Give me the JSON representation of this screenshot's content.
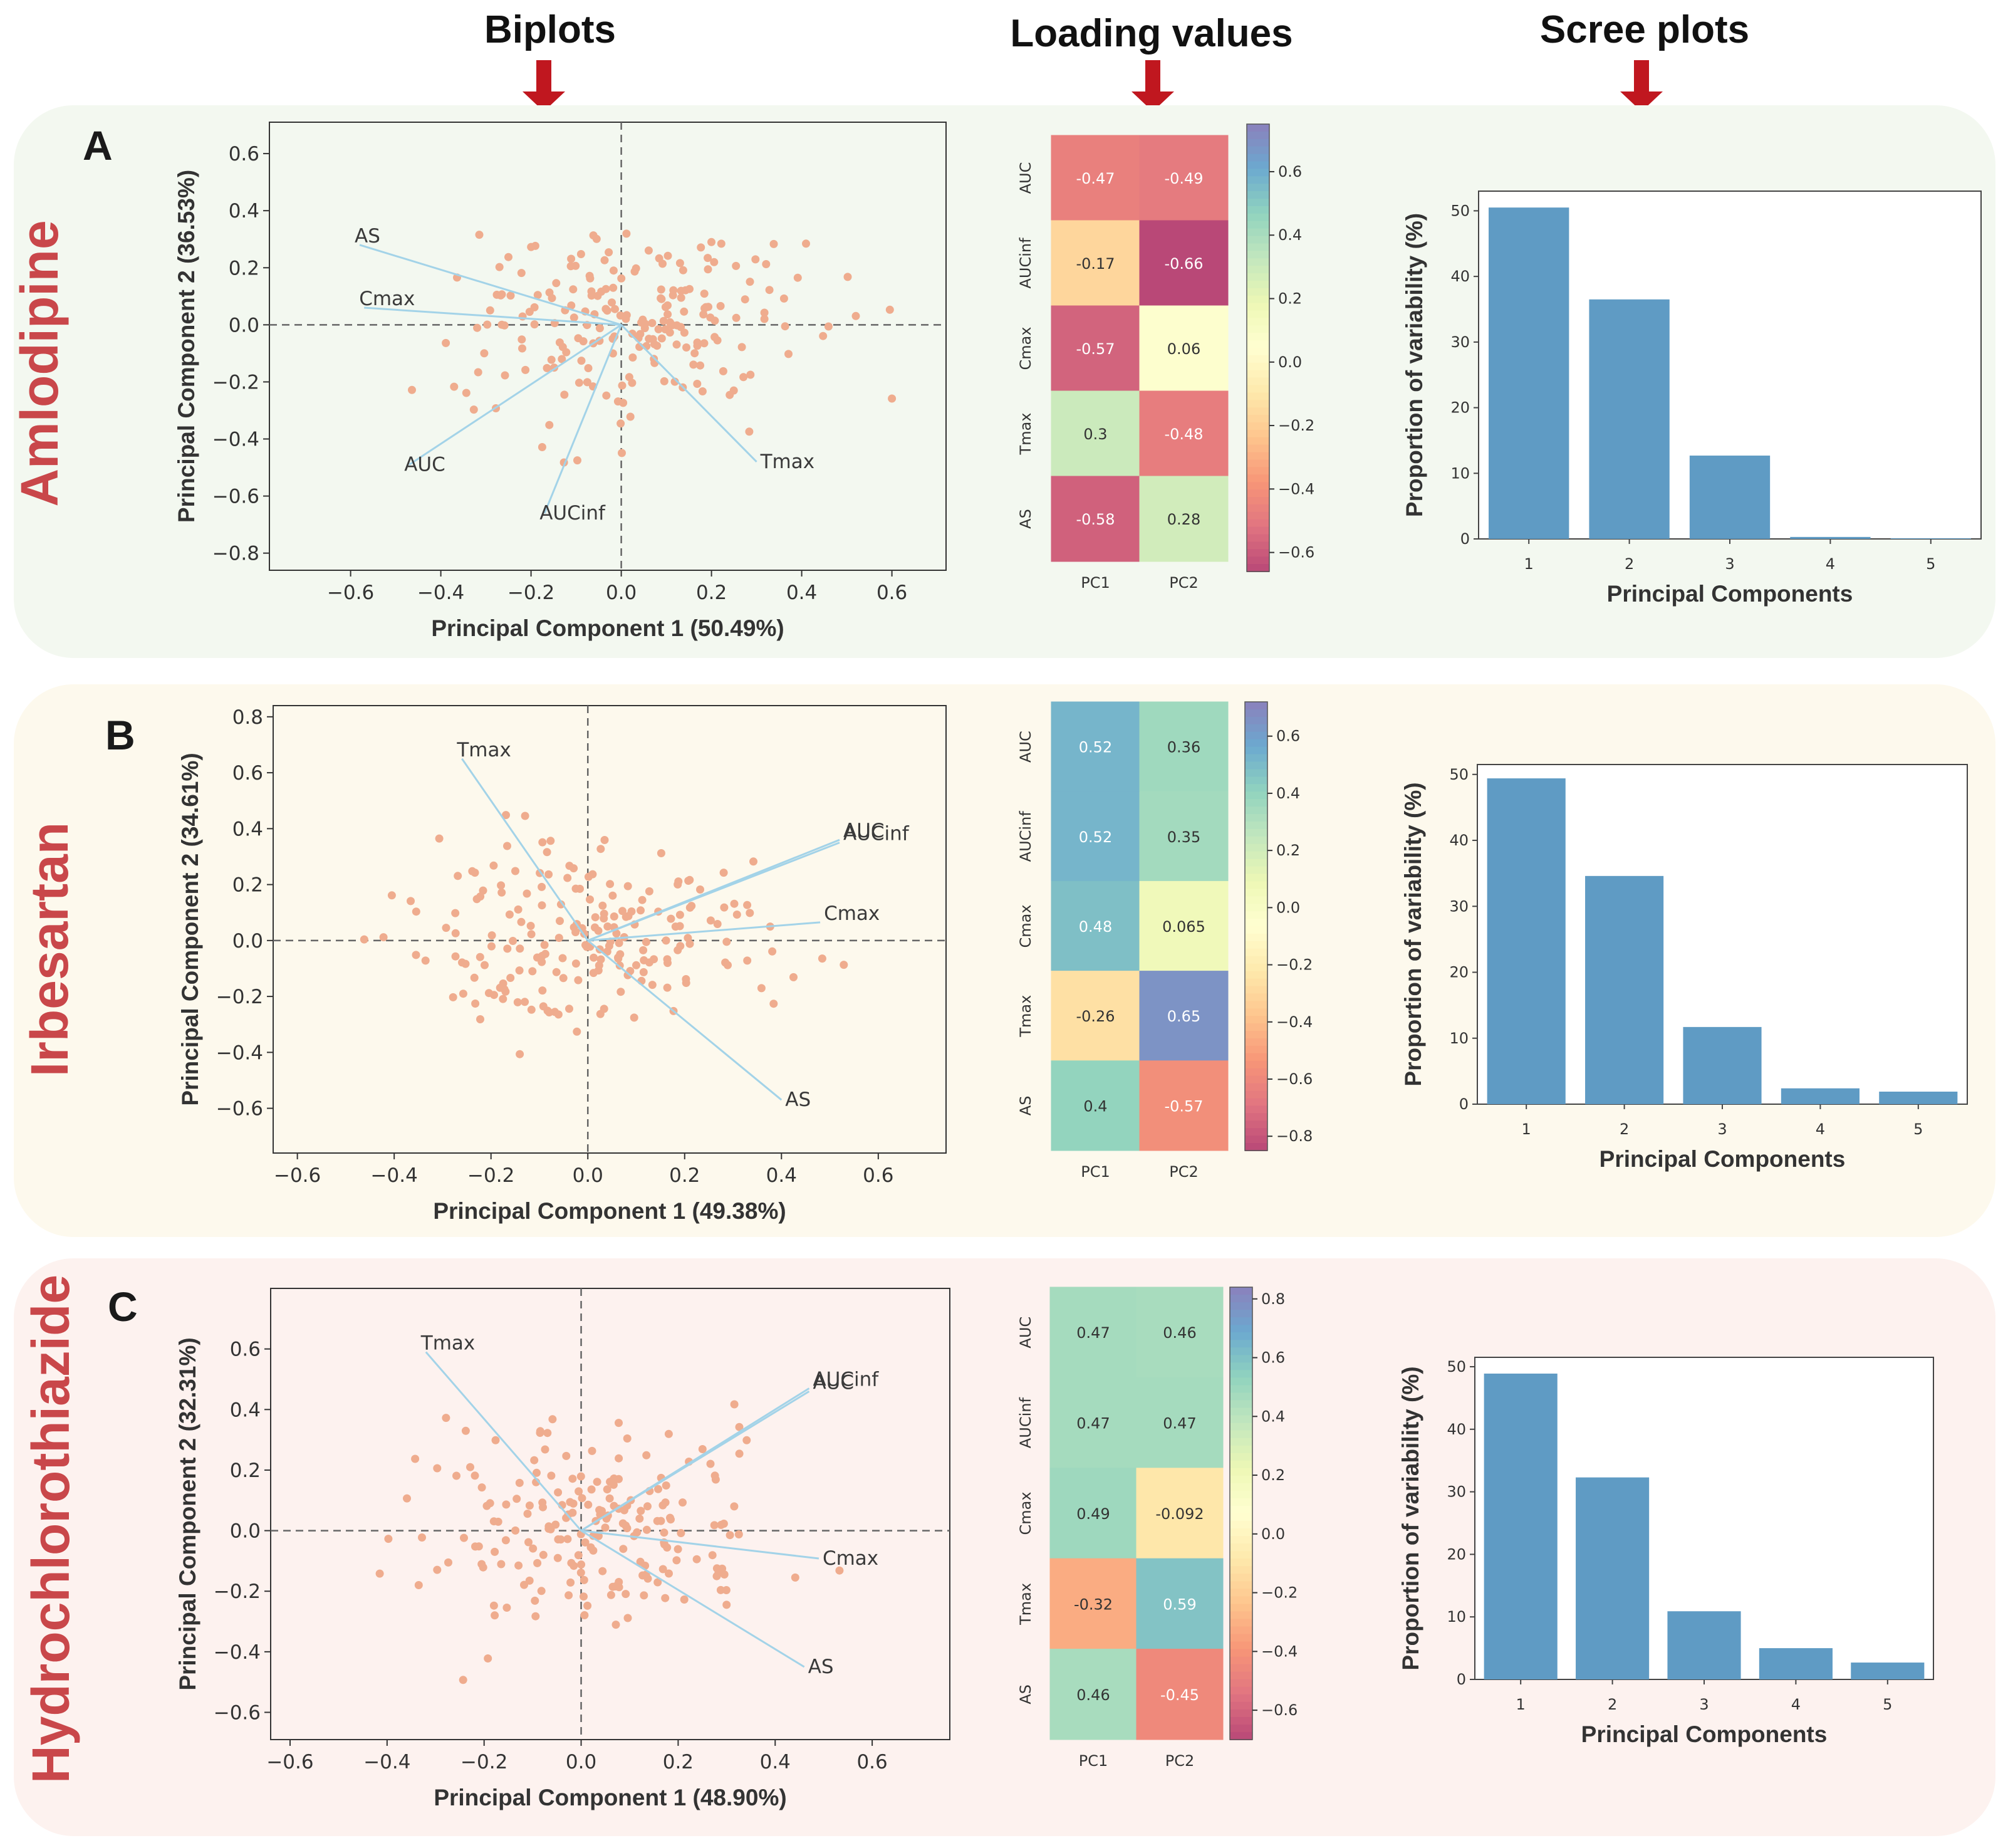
{
  "headers": {
    "biplots": "Biplots",
    "loadings": "Loading values",
    "scree": "Scree plots"
  },
  "colors": {
    "arrow": "#c0171f",
    "drug_label": "#c9474a",
    "points": "#efac8e",
    "vectors": "#a3d3e8",
    "bar": "#5f9bc4"
  },
  "panels": [
    {
      "letter": "A",
      "drug": "Amlodipine",
      "bg": "#f3f8f0",
      "chart_data": [
        {
          "type": "scatter",
          "title": "Biplot",
          "xlabel": "Principal Component 1 (50.49%)",
          "ylabel": "Principal Component 2 (36.53%)",
          "xlim": [
            -0.78,
            0.72
          ],
          "ylim": [
            -0.86,
            0.71
          ],
          "xticks": [
            "−0.6",
            "−0.4",
            "−0.2",
            "0.0",
            "0.2",
            "0.4",
            "0.6"
          ],
          "xtick_values": [
            -0.6,
            -0.4,
            -0.2,
            0,
            0.2,
            0.4,
            0.6
          ],
          "yticks": [
            "0.6",
            "0.4",
            "0.2",
            "0.0",
            "−0.2",
            "−0.4",
            "−0.6",
            "−0.8"
          ],
          "ytick_values": [
            0.6,
            0.4,
            0.2,
            0,
            -0.2,
            -0.4,
            -0.6,
            -0.8
          ],
          "vectors": [
            {
              "label": "AS",
              "x": -0.58,
              "y": 0.28
            },
            {
              "label": "Cmax",
              "x": -0.57,
              "y": 0.06
            },
            {
              "label": "AUC",
              "x": -0.47,
              "y": -0.49
            },
            {
              "label": "AUCinf",
              "x": -0.17,
              "y": -0.66
            },
            {
              "label": "Tmax",
              "x": 0.3,
              "y": -0.48
            }
          ],
          "seed": 7,
          "n_points": 210
        },
        {
          "type": "heatmap",
          "title": "Loading values",
          "rows": [
            "AUC",
            "AUCinf",
            "Cmax",
            "Tmax",
            "AS"
          ],
          "cols": [
            "PC1",
            "PC2"
          ],
          "values": [
            [
              -0.47,
              -0.49
            ],
            [
              -0.17,
              -0.66
            ],
            [
              -0.57,
              0.06
            ],
            [
              0.3,
              -0.48
            ],
            [
              -0.58,
              0.28
            ]
          ],
          "labels": [
            [
              "-0.47",
              "-0.49"
            ],
            [
              "-0.17",
              "-0.66"
            ],
            [
              "-0.57",
              "0.06"
            ],
            [
              "0.3",
              "-0.48"
            ],
            [
              "-0.58",
              "0.28"
            ]
          ],
          "vmin": -0.66,
          "vmax": 0.75,
          "colorbar_ticks": [
            "0.6",
            "0.4",
            "0.2",
            "0.0",
            "−0.2",
            "−0.4",
            "−0.6"
          ],
          "colorbar_values": [
            0.6,
            0.4,
            0.2,
            0,
            -0.2,
            -0.4,
            -0.6
          ]
        },
        {
          "type": "bar",
          "title": "Scree plot",
          "xlabel": "Principal Components",
          "ylabel": "Proportion of variability (%)",
          "categories": [
            "1",
            "2",
            "3",
            "4",
            "5"
          ],
          "values": [
            50.5,
            36.5,
            12.7,
            0.3,
            0.1
          ],
          "ylim": [
            0,
            53
          ],
          "yticks": [
            "0",
            "10",
            "20",
            "30",
            "40",
            "50"
          ],
          "ytick_values": [
            0,
            10,
            20,
            30,
            40,
            50
          ]
        }
      ]
    },
    {
      "letter": "B",
      "drug": "Irbesartan",
      "bg": "#fdf9ed",
      "chart_data": [
        {
          "type": "scatter",
          "title": "Biplot",
          "xlabel": "Principal Component 1 (49.38%)",
          "ylabel": "Principal Component 2 (34.61%)",
          "xlim": [
            -0.65,
            0.74
          ],
          "ylim": [
            -0.76,
            0.84
          ],
          "xticks": [
            "−0.6",
            "−0.4",
            "−0.2",
            "0.0",
            "0.2",
            "0.4",
            "0.6"
          ],
          "xtick_values": [
            -0.6,
            -0.4,
            -0.2,
            0,
            0.2,
            0.4,
            0.6
          ],
          "yticks": [
            "0.8",
            "0.6",
            "0.4",
            "0.2",
            "0.0",
            "−0.2",
            "−0.4",
            "−0.6"
          ],
          "ytick_values": [
            0.8,
            0.6,
            0.4,
            0.2,
            0,
            -0.2,
            -0.4,
            -0.6
          ],
          "vectors": [
            {
              "label": "Tmax",
              "x": -0.26,
              "y": 0.65
            },
            {
              "label": "AUC",
              "x": 0.52,
              "y": 0.36
            },
            {
              "label": "AUCinf",
              "x": 0.52,
              "y": 0.35
            },
            {
              "label": "Cmax",
              "x": 0.48,
              "y": 0.065
            },
            {
              "label": "AS",
              "x": 0.4,
              "y": -0.57
            }
          ],
          "seed": 19,
          "n_points": 200
        },
        {
          "type": "heatmap",
          "title": "Loading values",
          "rows": [
            "AUC",
            "AUCinf",
            "Cmax",
            "Tmax",
            "AS"
          ],
          "cols": [
            "PC1",
            "PC2"
          ],
          "values": [
            [
              0.52,
              0.36
            ],
            [
              0.52,
              0.35
            ],
            [
              0.48,
              0.065
            ],
            [
              -0.26,
              0.65
            ],
            [
              0.4,
              -0.57
            ]
          ],
          "labels": [
            [
              "0.52",
              "0.36"
            ],
            [
              "0.52",
              "0.35"
            ],
            [
              "0.48",
              "0.065"
            ],
            [
              "-0.26",
              "0.65"
            ],
            [
              "0.4",
              "-0.57"
            ]
          ],
          "vmin": -0.85,
          "vmax": 0.72,
          "colorbar_ticks": [
            "0.6",
            "0.4",
            "0.2",
            "0.0",
            "−0.2",
            "−0.4",
            "−0.6",
            "−0.8"
          ],
          "colorbar_values": [
            0.6,
            0.4,
            0.2,
            0,
            -0.2,
            -0.4,
            -0.6,
            -0.8
          ]
        },
        {
          "type": "bar",
          "title": "Scree plot",
          "xlabel": "Principal Components",
          "ylabel": "Proportion of variability (%)",
          "categories": [
            "1",
            "2",
            "3",
            "4",
            "5"
          ],
          "values": [
            49.4,
            34.6,
            11.7,
            2.4,
            1.9
          ],
          "ylim": [
            0,
            51.5
          ],
          "yticks": [
            "0",
            "10",
            "20",
            "30",
            "40",
            "50"
          ],
          "ytick_values": [
            0,
            10,
            20,
            30,
            40,
            50
          ]
        }
      ]
    },
    {
      "letter": "C",
      "drug": "Hydrochlorothiazide",
      "bg": "#fdf2ef",
      "chart_data": [
        {
          "type": "scatter",
          "title": "Biplot",
          "xlabel": "Principal Component 1 (48.90%)",
          "ylabel": "Principal Component 2 (32.31%)",
          "xlim": [
            -0.64,
            0.76
          ],
          "ylim": [
            -0.69,
            0.8
          ],
          "xticks": [
            "−0.6",
            "−0.4",
            "−0.2",
            "0.0",
            "0.2",
            "0.4",
            "0.6"
          ],
          "xtick_values": [
            -0.6,
            -0.4,
            -0.2,
            0,
            0.2,
            0.4,
            0.6
          ],
          "yticks": [
            "0.6",
            "0.4",
            "0.2",
            "0.0",
            "−0.2",
            "−0.4",
            "−0.6"
          ],
          "ytick_values": [
            0.6,
            0.4,
            0.2,
            0,
            -0.2,
            -0.4,
            -0.6
          ],
          "vectors": [
            {
              "label": "Tmax",
              "x": -0.32,
              "y": 0.59
            },
            {
              "label": "AUC",
              "x": 0.47,
              "y": 0.46
            },
            {
              "label": "AUCinf",
              "x": 0.47,
              "y": 0.47
            },
            {
              "label": "Cmax",
              "x": 0.49,
              "y": -0.092
            },
            {
              "label": "AS",
              "x": 0.46,
              "y": -0.45
            }
          ],
          "seed": 31,
          "n_points": 200
        },
        {
          "type": "heatmap",
          "title": "Loading values",
          "rows": [
            "AUC",
            "AUCinf",
            "Cmax",
            "Tmax",
            "AS"
          ],
          "cols": [
            "PC1",
            "PC2"
          ],
          "values": [
            [
              0.47,
              0.46
            ],
            [
              0.47,
              0.47
            ],
            [
              0.49,
              -0.092
            ],
            [
              -0.32,
              0.59
            ],
            [
              0.46,
              -0.45
            ]
          ],
          "labels": [
            [
              "0.47",
              "0.46"
            ],
            [
              "0.47",
              "0.47"
            ],
            [
              "0.49",
              "-0.092"
            ],
            [
              "-0.32",
              "0.59"
            ],
            [
              "0.46",
              "-0.45"
            ]
          ],
          "vmin": -0.7,
          "vmax": 0.84,
          "colorbar_ticks": [
            "0.8",
            "0.6",
            "0.4",
            "0.2",
            "0.0",
            "−0.2",
            "−0.4",
            "−0.6"
          ],
          "colorbar_values": [
            0.8,
            0.6,
            0.4,
            0.2,
            0,
            -0.2,
            -0.4,
            -0.6
          ]
        },
        {
          "type": "bar",
          "title": "Scree plot",
          "xlabel": "Principal Components",
          "ylabel": "Proportion of variability (%)",
          "categories": [
            "1",
            "2",
            "3",
            "4",
            "5"
          ],
          "values": [
            48.9,
            32.3,
            10.9,
            5.0,
            2.7
          ],
          "ylim": [
            0,
            51.5
          ],
          "yticks": [
            "0",
            "10",
            "20",
            "30",
            "40",
            "50"
          ],
          "ytick_values": [
            0,
            10,
            20,
            30,
            40,
            50
          ]
        }
      ]
    }
  ]
}
